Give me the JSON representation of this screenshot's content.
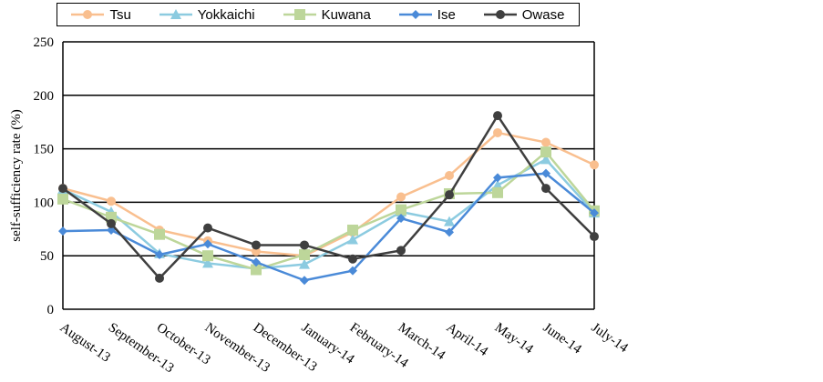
{
  "chart_data": {
    "type": "line",
    "title": "",
    "xlabel": "",
    "ylabel": "self-sufficiency rate (%)",
    "ylim": [
      0,
      250
    ],
    "yticks": [
      "0",
      "50",
      "100",
      "150",
      "200",
      "250"
    ],
    "grid": true,
    "legend_placement": "top",
    "categories": [
      "August-13",
      "September-13",
      "October-13",
      "November-13",
      "December-13",
      "January-14",
      "February-14",
      "March-14",
      "April-14",
      "May-14",
      "June-14",
      "July-14"
    ],
    "series": [
      {
        "name": "Tsu",
        "color": "#f9bf8f",
        "marker": "circle",
        "values": [
          113,
          101,
          74,
          64,
          54,
          50,
          72,
          105,
          125,
          165,
          156,
          135
        ]
      },
      {
        "name": "Yokkaichi",
        "color": "#8ccbe0",
        "marker": "triangle",
        "values": [
          112,
          91,
          52,
          43,
          38,
          42,
          65,
          91,
          82,
          116,
          140,
          90
        ]
      },
      {
        "name": "Kuwana",
        "color": "#bdd69a",
        "marker": "square",
        "values": [
          103,
          86,
          70,
          50,
          37,
          51,
          74,
          93,
          108,
          109,
          147,
          92
        ]
      },
      {
        "name": "Ise",
        "color": "#4a8ad8",
        "marker": "diamond",
        "values": [
          73,
          74,
          51,
          61,
          44,
          27,
          36,
          85,
          72,
          123,
          127,
          90
        ]
      },
      {
        "name": "Owase",
        "color": "#3f3f3f",
        "marker": "circle",
        "values": [
          113,
          80,
          29,
          76,
          60,
          60,
          47,
          55,
          107,
          181,
          113,
          68
        ]
      }
    ]
  }
}
